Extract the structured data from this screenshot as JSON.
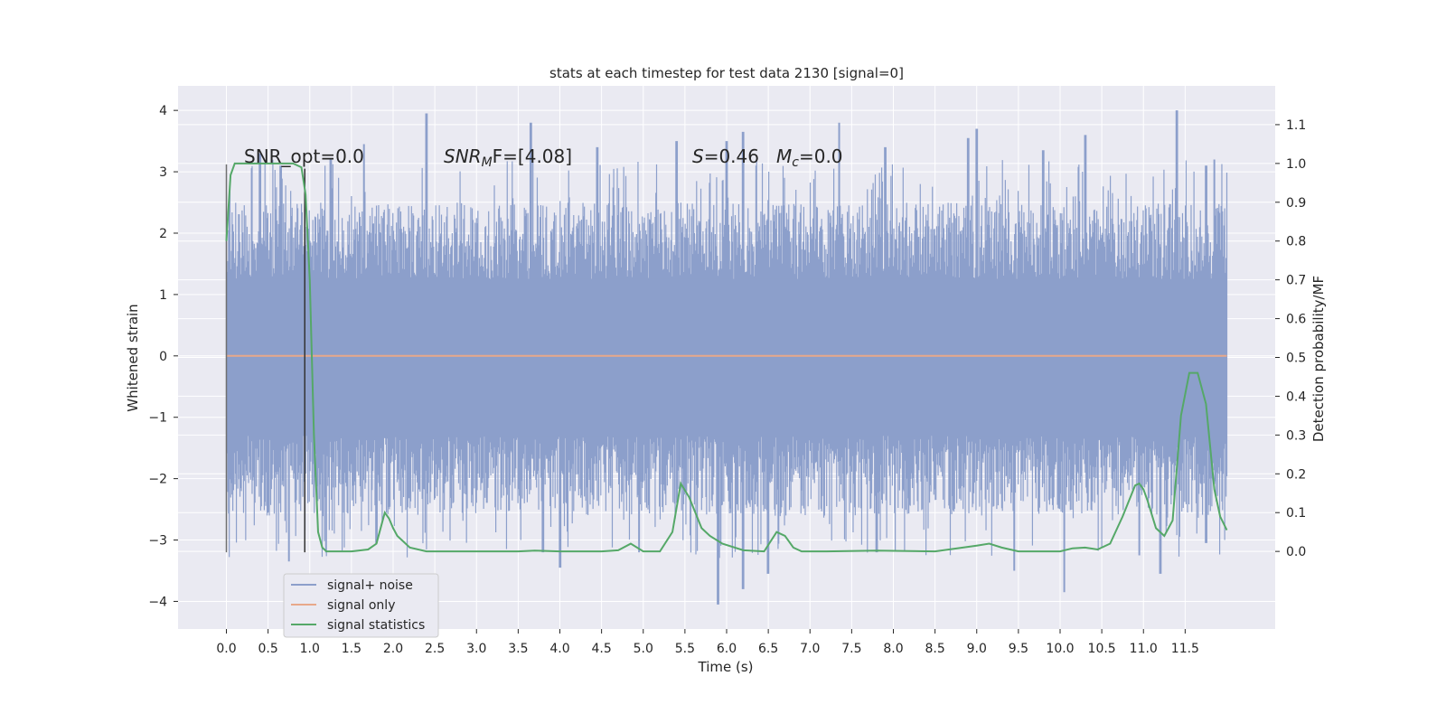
{
  "chart_data": {
    "type": "line",
    "title": "stats at each timestep for test data 2130 [signal=0]",
    "xlabel": "Time (s)",
    "ylabel": "Whitened strain",
    "ylabel_right": "Detection probability/MF",
    "xlim": [
      -0.58,
      12.58
    ],
    "ylim": [
      -4.45,
      4.4
    ],
    "ylim_right": [
      -0.2,
      1.2
    ],
    "x_ticks": [
      "0.0",
      "0.5",
      "1.0",
      "1.5",
      "2.0",
      "2.5",
      "3.0",
      "3.5",
      "4.0",
      "4.5",
      "5.0",
      "5.5",
      "6.0",
      "6.5",
      "7.0",
      "7.5",
      "8.0",
      "8.5",
      "9.0",
      "9.5",
      "10.0",
      "10.5",
      "11.0",
      "11.5"
    ],
    "y_ticks": [
      "4",
      "3",
      "2",
      "1",
      "0",
      "−1",
      "−2",
      "−3",
      "−4"
    ],
    "y_ticks_right": [
      "1.1",
      "1.0",
      "0.9",
      "0.8",
      "0.7",
      "0.6",
      "0.5",
      "0.4",
      "0.3",
      "0.2",
      "0.1",
      "0.0"
    ],
    "grid": true,
    "legend_position": "lower-left",
    "legend": [
      {
        "label": "signal+ noise",
        "color": "#8c9fcb"
      },
      {
        "label": "signal only",
        "color": "#e8a88a"
      },
      {
        "label": "signal statistics",
        "color": "#55a868"
      }
    ],
    "annotations": {
      "snr_opt": "SNR_opt=0.0",
      "snr_mf_prefix": "SNR",
      "snr_mf_sub": "M",
      "snr_mf_suffix": "F=[4.08]",
      "s_prefix": "S",
      "s_value": "=0.46",
      "mc_prefix": "M",
      "mc_sub": "c",
      "mc_value": "=0.0"
    },
    "noise": {
      "x_start": 0.0,
      "x_end": 12.0,
      "envelope_upper": 1.25,
      "envelope_lower": -1.3,
      "typical_max": 2.5,
      "typical_min": -2.6,
      "peaks_upper": [
        [
          0.4,
          3.3
        ],
        [
          0.65,
          3.1
        ],
        [
          1.25,
          3.2
        ],
        [
          1.65,
          3.45
        ],
        [
          2.4,
          3.95
        ],
        [
          3.65,
          3.8
        ],
        [
          4.45,
          3.4
        ],
        [
          5.4,
          3.5
        ],
        [
          6.0,
          3.5
        ],
        [
          6.2,
          3.65
        ],
        [
          7.35,
          3.8
        ],
        [
          7.9,
          3.4
        ],
        [
          8.9,
          3.55
        ],
        [
          9.0,
          3.7
        ],
        [
          9.8,
          3.35
        ],
        [
          10.3,
          3.6
        ],
        [
          11.4,
          4.0
        ],
        [
          11.75,
          3.1
        ],
        [
          11.85,
          3.2
        ]
      ],
      "peaks_lower": [
        [
          0.75,
          -3.35
        ],
        [
          1.8,
          -3.05
        ],
        [
          3.8,
          -3.2
        ],
        [
          4.0,
          -3.45
        ],
        [
          4.95,
          -3.2
        ],
        [
          5.9,
          -4.05
        ],
        [
          6.2,
          -3.8
        ],
        [
          6.5,
          -3.55
        ],
        [
          7.8,
          -3.2
        ],
        [
          9.45,
          -3.5
        ],
        [
          10.05,
          -3.85
        ],
        [
          10.95,
          -3.25
        ],
        [
          11.2,
          -3.55
        ],
        [
          11.75,
          -3.05
        ]
      ]
    },
    "signal_only": {
      "x": [
        0.0,
        12.0
      ],
      "y": [
        0.0,
        0.0
      ]
    },
    "signal_statistics": {
      "x": [
        0.0,
        0.05,
        0.1,
        0.2,
        0.3,
        0.5,
        0.7,
        0.8,
        0.9,
        0.95,
        1.0,
        1.05,
        1.1,
        1.15,
        1.2,
        1.3,
        1.5,
        1.7,
        1.8,
        1.9,
        1.95,
        2.0,
        2.05,
        2.1,
        2.2,
        2.4,
        2.6,
        3.0,
        3.5,
        3.7,
        4.0,
        4.5,
        4.7,
        4.85,
        5.0,
        5.2,
        5.35,
        5.45,
        5.55,
        5.7,
        5.8,
        5.95,
        6.2,
        6.45,
        6.6,
        6.7,
        6.8,
        6.9,
        7.2,
        7.8,
        8.5,
        9.0,
        9.15,
        9.3,
        9.5,
        10.0,
        10.15,
        10.3,
        10.45,
        10.6,
        10.75,
        10.9,
        10.95,
        11.0,
        11.05,
        11.15,
        11.25,
        11.35,
        11.45,
        11.55,
        11.6,
        11.65,
        11.75,
        11.85,
        11.92,
        12.0
      ],
      "y": [
        0.8,
        0.97,
        1.0,
        1.0,
        1.0,
        1.0,
        1.0,
        1.0,
        0.99,
        0.92,
        0.7,
        0.3,
        0.05,
        0.01,
        0.0,
        0.0,
        0.0,
        0.005,
        0.02,
        0.1,
        0.085,
        0.06,
        0.04,
        0.03,
        0.01,
        0.0,
        0.0,
        0.0,
        0.0,
        0.002,
        0.0,
        0.0,
        0.003,
        0.02,
        0.0,
        0.0,
        0.05,
        0.175,
        0.14,
        0.06,
        0.04,
        0.02,
        0.003,
        0.0,
        0.05,
        0.04,
        0.01,
        0.0,
        0.0,
        0.002,
        0.0,
        0.015,
        0.02,
        0.01,
        0.0,
        0.0,
        0.008,
        0.01,
        0.005,
        0.02,
        0.09,
        0.17,
        0.175,
        0.16,
        0.13,
        0.06,
        0.04,
        0.08,
        0.35,
        0.46,
        0.46,
        0.46,
        0.38,
        0.16,
        0.09,
        0.055
      ]
    },
    "vertical_markers": [
      {
        "x": 0.0,
        "y_low": -3.2,
        "y_high": 3.12,
        "color": "#707070"
      },
      {
        "x": 0.94,
        "y_low": -3.2,
        "y_high": 3.05,
        "color": "#333333"
      }
    ]
  }
}
